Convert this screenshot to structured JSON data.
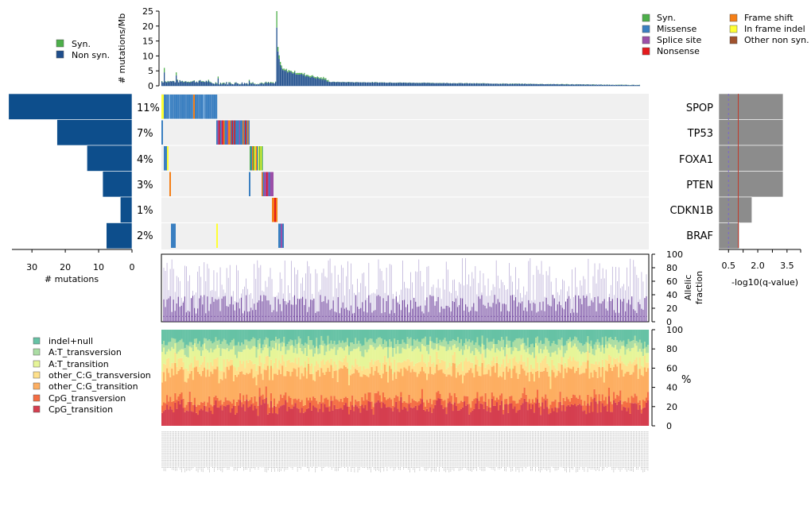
{
  "chart_data": [
    {
      "id": "mutation_burden",
      "type": "bar",
      "ylabel": "# mutations/Mb",
      "ylim": [
        0,
        25
      ],
      "yticks": [
        0,
        5,
        10,
        15,
        20,
        25
      ],
      "sample_count": 400,
      "series_legend": [
        "Syn.",
        "Non syn."
      ],
      "colors": {
        "syn": "#4daf4a",
        "nonsyn": "#1f4e8c"
      },
      "peaks": [
        {
          "sample": 2,
          "nonsyn": 4.5,
          "syn": 1.5
        },
        {
          "sample": 12,
          "nonsyn": 3.5,
          "syn": 1.0
        },
        {
          "sample": 47,
          "nonsyn": 2.5,
          "syn": 0.6
        },
        {
          "sample": 73,
          "nonsyn": 1.6,
          "syn": 0.4
        },
        {
          "sample": 96,
          "nonsyn": 19.5,
          "syn": 5.5
        },
        {
          "sample": 97,
          "nonsyn": 11.5,
          "syn": 1.5
        },
        {
          "sample": 98,
          "nonsyn": 9.0,
          "syn": 1.2
        },
        {
          "sample": 99,
          "nonsyn": 7.0,
          "syn": 1.0
        },
        {
          "sample": 100,
          "nonsyn": 6.0,
          "syn": 0.8
        }
      ]
    },
    {
      "id": "oncoprint",
      "type": "heatmap",
      "genes": [
        "SPOP",
        "TP53",
        "FOXA1",
        "PTEN",
        "CDKN1B",
        "BRAF"
      ],
      "percentages": [
        "11%",
        "7%",
        "4%",
        "3%",
        "1%",
        "2%"
      ],
      "mutation_types": [
        "Syn.",
        "Missense",
        "Splice site",
        "Nonsense",
        "Frame shift",
        "In frame indel",
        "Other non syn."
      ],
      "type_colors": [
        "#4daf4a",
        "#3a7fc1",
        "#9b4fa8",
        "#e41a1c",
        "#f57f17",
        "#ffff33",
        "#a0522d"
      ],
      "background": "#f0f0f0"
    },
    {
      "id": "mutation_counts",
      "type": "bar",
      "orientation": "horizontal",
      "xlabel": "# mutations",
      "xlim": [
        0,
        36
      ],
      "xticks": [
        30,
        20,
        10,
        0
      ],
      "categories": [
        "SPOP",
        "TP53",
        "FOXA1",
        "PTEN",
        "CDKN1B",
        "BRAF"
      ],
      "values": [
        37,
        22.5,
        13.5,
        8.8,
        3.5,
        7.7
      ],
      "color": "#0d4e8c"
    },
    {
      "id": "qvalues",
      "type": "bar",
      "orientation": "horizontal",
      "xlabel": "-log10(q-value)",
      "xticks": [
        "0.5",
        "2.0",
        "3.5"
      ],
      "categories": [
        "SPOP",
        "TP53",
        "FOXA1",
        "PTEN",
        "CDKN1B",
        "BRAF"
      ],
      "values": [
        3.3,
        3.3,
        3.3,
        3.3,
        1.7,
        1.05
      ],
      "threshold_solid": 1.0,
      "threshold_dashed": 0.5,
      "xlim": [
        0,
        4.2
      ],
      "color": "#8c8c8c"
    },
    {
      "id": "allelic_fraction",
      "type": "scatter",
      "ylabel": "Allelic fraction",
      "ylim": [
        0,
        100
      ],
      "yticks": [
        0,
        20,
        40,
        60,
        80,
        100
      ],
      "median_color": "#6a3d9a",
      "range_color": "#bcb0d8"
    },
    {
      "id": "spectrum",
      "type": "area",
      "ylabel": "%",
      "ylim": [
        0,
        100
      ],
      "yticks": [
        0,
        20,
        40,
        60,
        80,
        100
      ],
      "categories": [
        "indel+null",
        "A:T_transversion",
        "A:T_transition",
        "other_C:G_transversion",
        "other_C:G_transition",
        "CpG_transversion",
        "CpG_transition"
      ],
      "mean_fractions": [
        12,
        8,
        14,
        10,
        28,
        8,
        20
      ],
      "colors": [
        "#66c2a5",
        "#abdda4",
        "#e6f598",
        "#fee08b",
        "#fdae61",
        "#f46d43",
        "#d53e4f"
      ]
    }
  ],
  "legends": {
    "burden": [
      {
        "label": "Syn.",
        "color": "#4daf4a"
      },
      {
        "label": "Non syn.",
        "color": "#1f4e8c"
      }
    ],
    "mutation_types": [
      {
        "label": "Syn.",
        "color": "#4daf4a"
      },
      {
        "label": "Missense",
        "color": "#3a7fc1"
      },
      {
        "label": "Splice site",
        "color": "#9b4fa8"
      },
      {
        "label": "Nonsense",
        "color": "#e41a1c"
      },
      {
        "label": "Frame shift",
        "color": "#f57f17"
      },
      {
        "label": "In frame indel",
        "color": "#ffff33"
      },
      {
        "label": "Other non syn.",
        "color": "#a0522d"
      }
    ]
  }
}
